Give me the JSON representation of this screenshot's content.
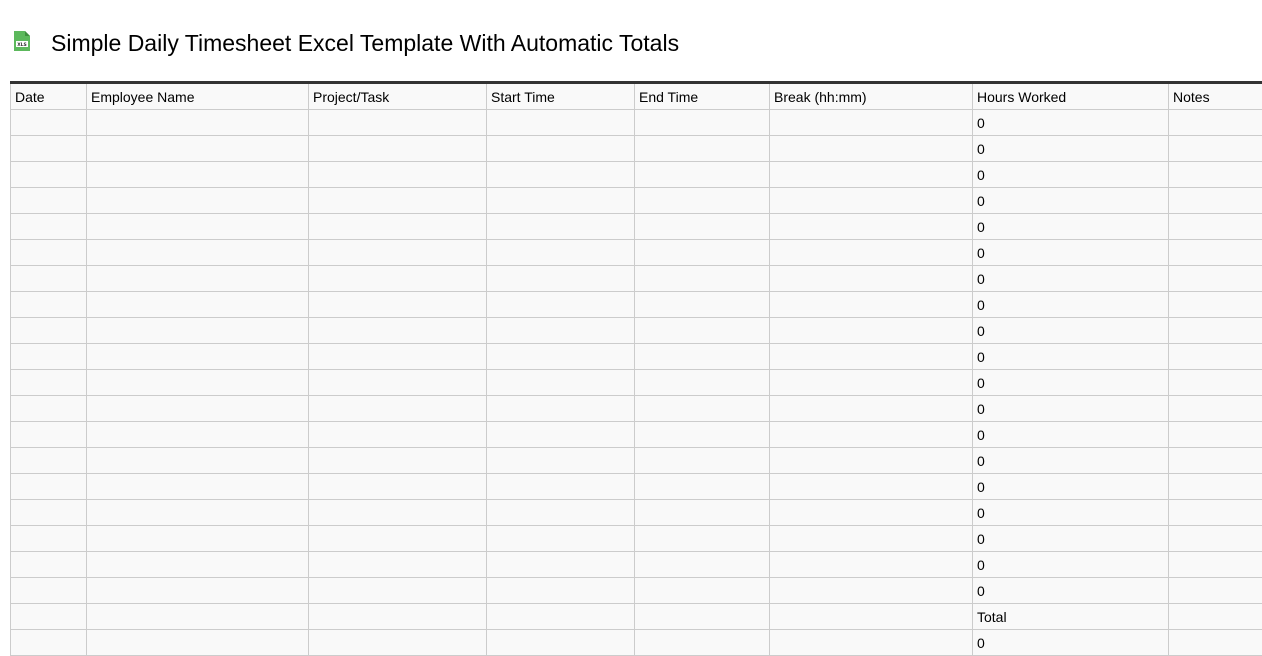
{
  "title": "Simple Daily Timesheet Excel Template With Automatic Totals",
  "icon": "xls-file-icon",
  "icon_label": "XLS",
  "accent": "#5cb85c",
  "columns": [
    "Date",
    "Employee Name",
    "Project/Task",
    "Start Time",
    "End Time",
    "Break (hh:mm)",
    "Hours Worked",
    "Notes"
  ],
  "rows_hours": [
    "0",
    "0",
    "0",
    "0",
    "0",
    "0",
    "0",
    "0",
    "0",
    "0",
    "0",
    "0",
    "0",
    "0",
    "0",
    "0",
    "0",
    "0",
    "0"
  ],
  "total_label": "Total",
  "total_value": "0"
}
